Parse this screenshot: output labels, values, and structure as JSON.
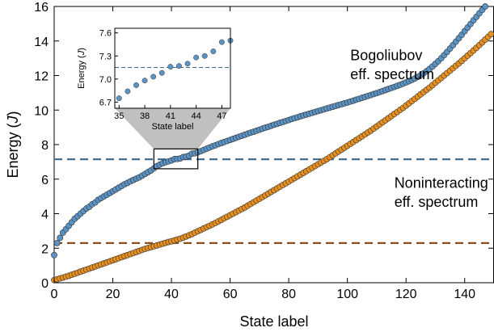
{
  "chart_data": {
    "type": "scatter",
    "xlabel": "State label",
    "ylabel": "Energy (J)",
    "xlim": [
      0,
      150
    ],
    "ylim": [
      0,
      16
    ],
    "xticks": [
      0,
      20,
      40,
      60,
      80,
      100,
      120,
      140
    ],
    "yticks": [
      0,
      2,
      4,
      6,
      8,
      10,
      12,
      14,
      16
    ],
    "grid": false,
    "colors": {
      "bogoliubov": "#5b93c5",
      "noninteracting": "#e8901f",
      "bogoliubov_line": "#3d6b8f",
      "noninteracting_line": "#8a4f1b"
    },
    "annotations": [
      {
        "text": "Bogoliubov",
        "x": 101,
        "y": 12.9
      },
      {
        "text": "eff. spectrum",
        "x": 101,
        "y": 11.8
      },
      {
        "text": "Noninteracting",
        "x": 116,
        "y": 5.5
      },
      {
        "text": "eff. spectrum",
        "x": 116,
        "y": 4.4
      }
    ],
    "hlines": [
      {
        "name": "bogoliubov-threshold",
        "y": 7.15
      },
      {
        "name": "noninteracting-threshold",
        "y": 2.3
      }
    ],
    "series": [
      {
        "name": "Bogoliubov",
        "x_start": 0,
        "x_step": 1,
        "values": [
          1.6,
          2.3,
          2.6,
          2.9,
          3.1,
          3.3,
          3.5,
          3.7,
          3.85,
          4.0,
          4.15,
          4.3,
          4.4,
          4.55,
          4.65,
          4.8,
          4.9,
          5.0,
          5.1,
          5.2,
          5.3,
          5.4,
          5.5,
          5.6,
          5.7,
          5.78,
          5.87,
          5.95,
          6.03,
          6.1,
          6.2,
          6.3,
          6.4,
          6.5,
          6.62,
          6.75,
          6.84,
          6.92,
          6.98,
          7.03,
          7.08,
          7.16,
          7.17,
          7.2,
          7.28,
          7.3,
          7.36,
          7.48,
          7.5,
          7.55,
          7.62,
          7.69,
          7.76,
          7.83,
          7.9,
          7.96,
          8.03,
          8.09,
          8.15,
          8.21,
          8.27,
          8.33,
          8.39,
          8.45,
          8.51,
          8.57,
          8.63,
          8.69,
          8.74,
          8.8,
          8.86,
          8.92,
          8.98,
          9.03,
          9.09,
          9.15,
          9.2,
          9.26,
          9.31,
          9.37,
          9.42,
          9.48,
          9.53,
          9.58,
          9.64,
          9.69,
          9.74,
          9.79,
          9.84,
          9.89,
          9.94,
          9.99,
          10.04,
          10.09,
          10.14,
          10.19,
          10.24,
          10.29,
          10.34,
          10.39,
          10.44,
          10.49,
          10.54,
          10.6,
          10.65,
          10.71,
          10.76,
          10.82,
          10.87,
          10.93,
          10.98,
          11.04,
          11.1,
          11.16,
          11.22,
          11.28,
          11.34,
          11.4,
          11.46,
          11.53,
          11.6,
          11.67,
          11.75,
          11.83,
          11.92,
          12.02,
          12.13,
          12.25,
          12.38,
          12.52,
          12.67,
          12.83,
          13.0,
          13.18,
          13.37,
          13.56,
          13.76,
          13.96,
          14.16,
          14.36,
          14.57,
          14.78,
          14.99,
          15.2,
          15.4,
          15.6,
          15.8,
          16.0
        ]
      },
      {
        "name": "Noninteracting",
        "x_start": 0,
        "x_step": 1,
        "values": [
          0.15,
          0.2,
          0.25,
          0.3,
          0.35,
          0.4,
          0.46,
          0.52,
          0.58,
          0.64,
          0.7,
          0.76,
          0.82,
          0.88,
          0.94,
          1.0,
          1.06,
          1.12,
          1.18,
          1.24,
          1.3,
          1.36,
          1.42,
          1.48,
          1.54,
          1.6,
          1.66,
          1.72,
          1.78,
          1.84,
          1.9,
          1.96,
          2.01,
          2.06,
          2.11,
          2.16,
          2.21,
          2.26,
          2.31,
          2.36,
          2.4,
          2.45,
          2.5,
          2.55,
          2.61,
          2.68,
          2.75,
          2.82,
          2.9,
          2.98,
          3.06,
          3.14,
          3.22,
          3.3,
          3.38,
          3.46,
          3.55,
          3.64,
          3.73,
          3.82,
          3.91,
          4.0,
          4.09,
          4.18,
          4.27,
          4.36,
          4.46,
          4.56,
          4.66,
          4.76,
          4.86,
          4.96,
          5.06,
          5.16,
          5.26,
          5.36,
          5.46,
          5.56,
          5.66,
          5.76,
          5.86,
          5.96,
          6.06,
          6.16,
          6.26,
          6.36,
          6.46,
          6.56,
          6.66,
          6.76,
          6.86,
          6.96,
          7.06,
          7.16,
          7.27,
          7.38,
          7.49,
          7.6,
          7.71,
          7.82,
          7.93,
          8.04,
          8.15,
          8.26,
          8.37,
          8.48,
          8.59,
          8.7,
          8.81,
          8.93,
          9.05,
          9.17,
          9.29,
          9.41,
          9.53,
          9.65,
          9.77,
          9.89,
          10.01,
          10.13,
          10.26,
          10.39,
          10.52,
          10.65,
          10.78,
          10.91,
          11.04,
          11.17,
          11.3,
          11.44,
          11.58,
          11.72,
          11.86,
          12.0,
          12.14,
          12.28,
          12.42,
          12.56,
          12.7,
          12.85,
          13.0,
          13.15,
          13.3,
          13.45,
          13.6,
          13.76,
          13.92,
          14.08,
          14.24,
          14.4
        ]
      }
    ],
    "inset": {
      "xlabel": "State label",
      "ylabel": "Energy (J)",
      "xlim": [
        34.5,
        48
      ],
      "ylim": [
        6.62,
        7.66
      ],
      "xticks": [
        35,
        38,
        41,
        44,
        47
      ],
      "yticks": [
        6.7,
        7.0,
        7.3,
        7.6
      ],
      "zoom_box": {
        "x": [
          34,
          49
        ],
        "y": [
          6.6,
          7.75
        ]
      },
      "hline": 7.15,
      "series_name": "Bogoliubov"
    }
  }
}
